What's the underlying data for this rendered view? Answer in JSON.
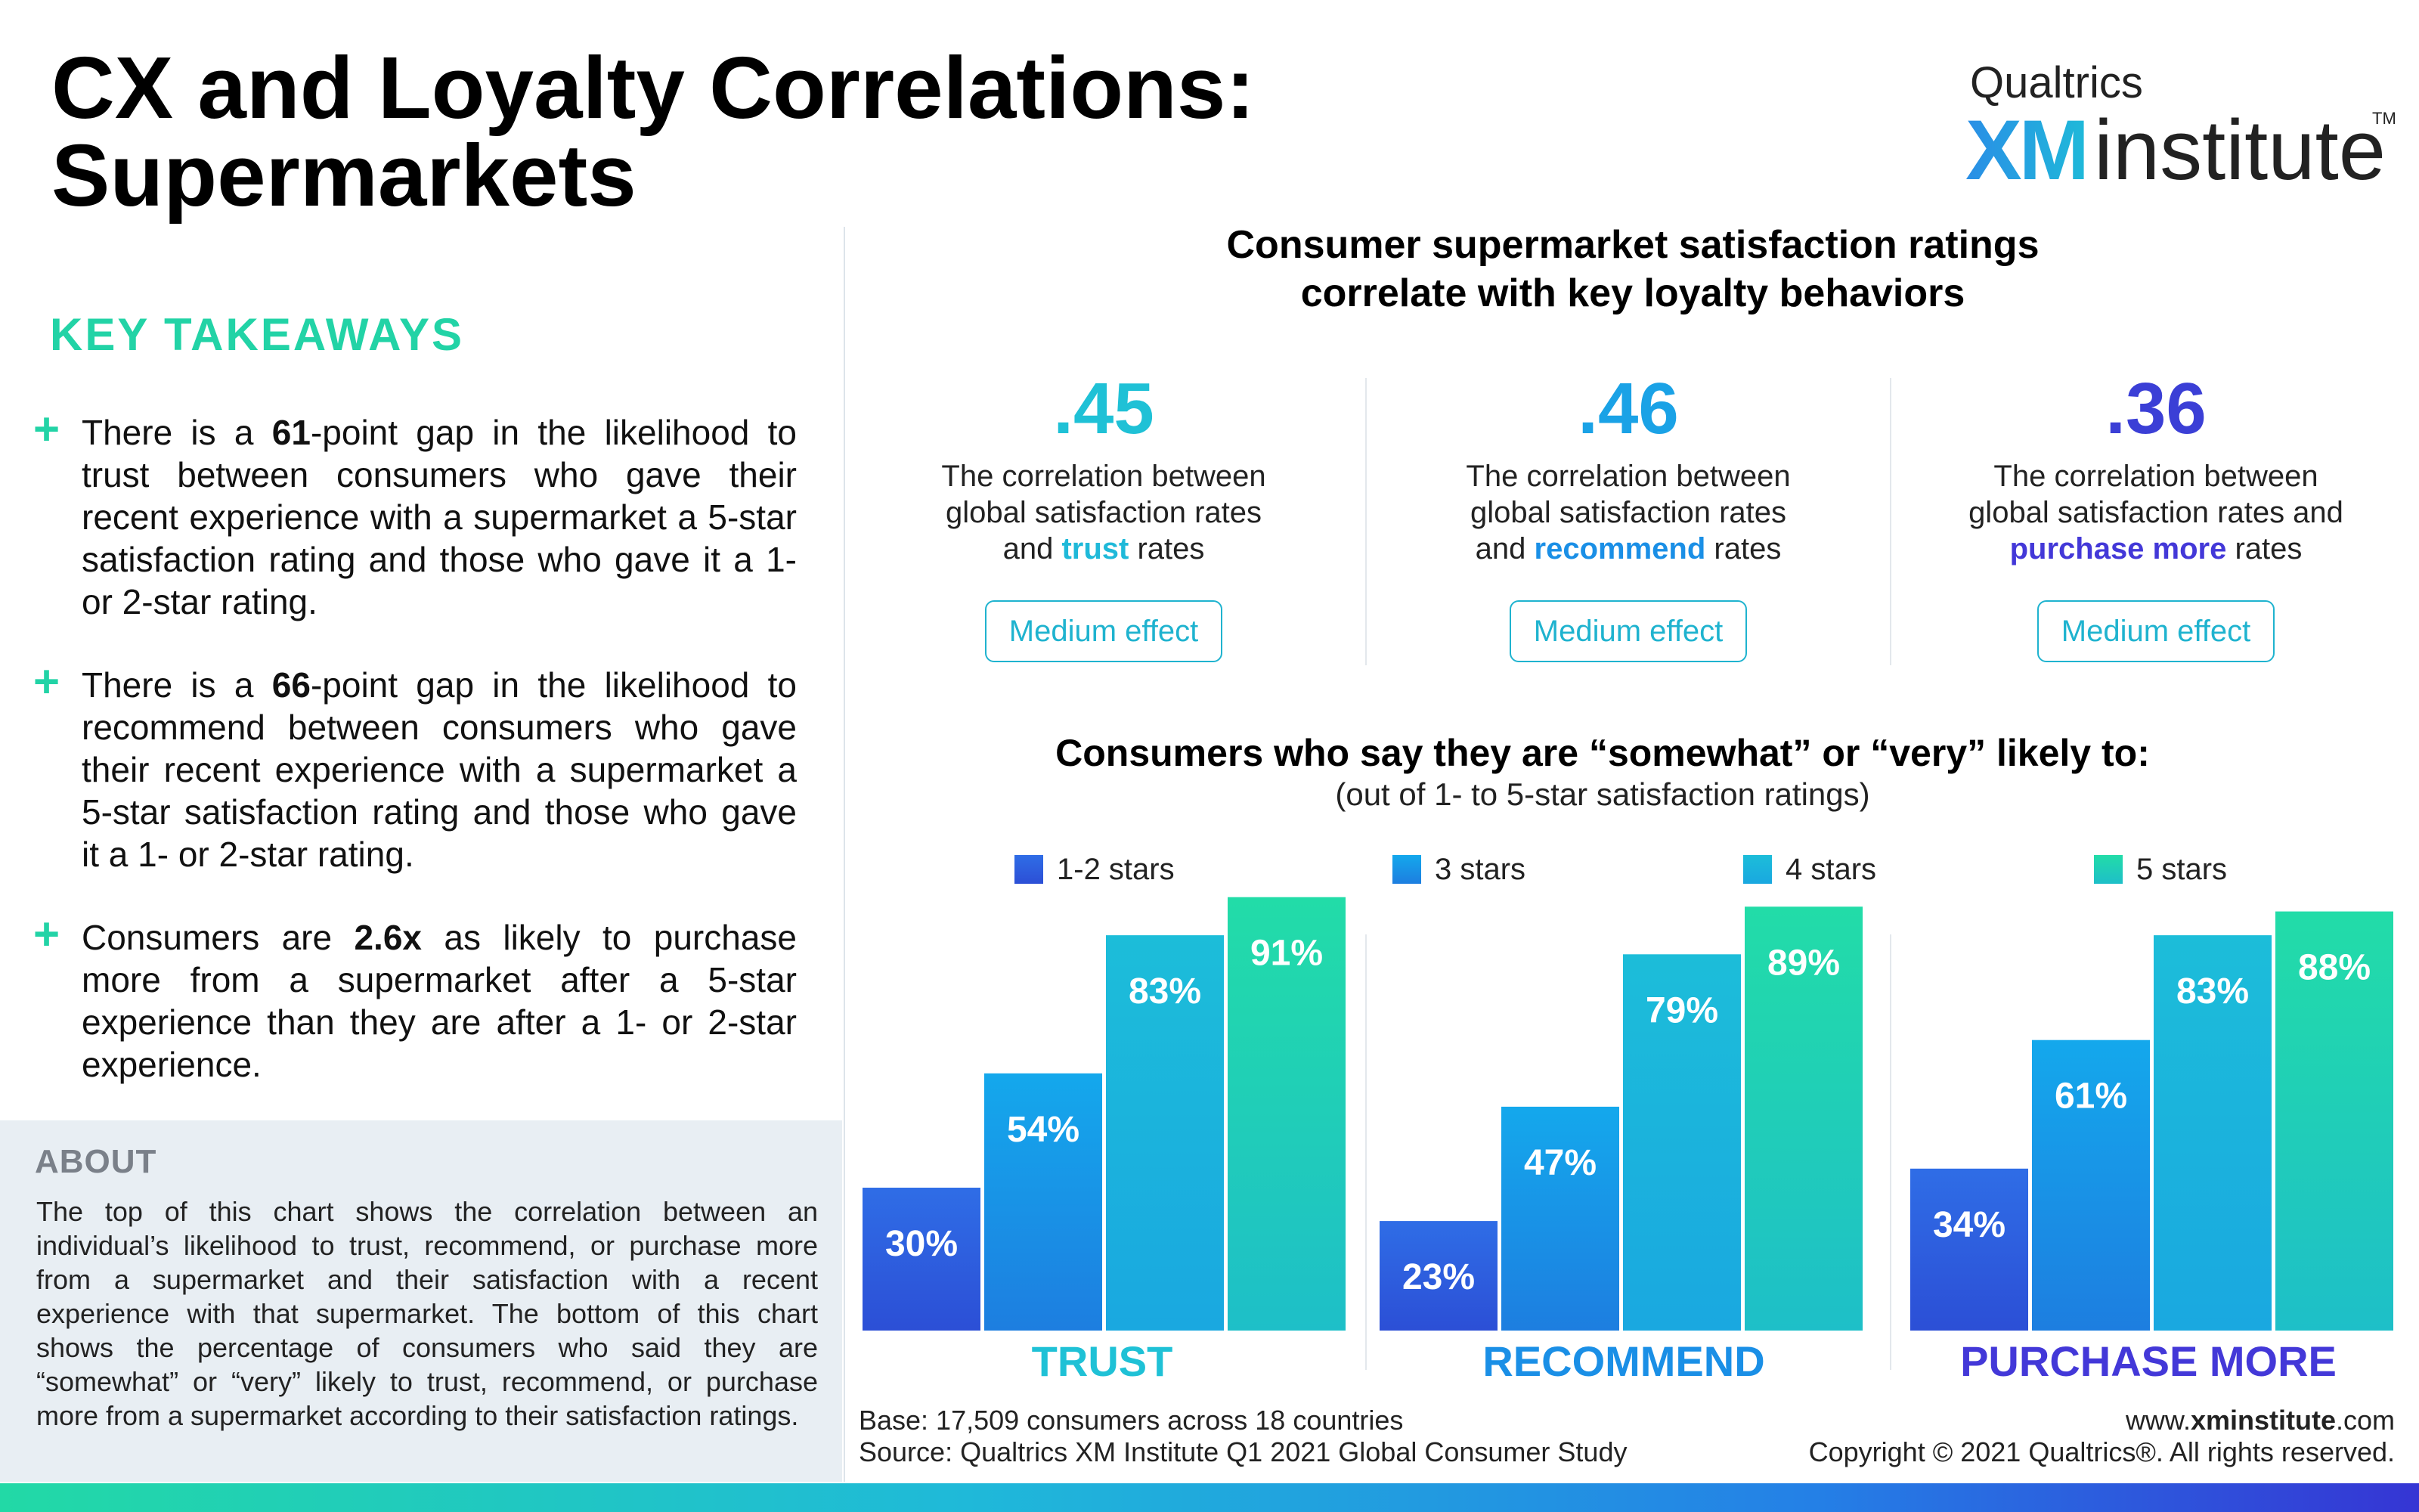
{
  "title": {
    "line1": "CX and Loyalty Correlations:",
    "line2": "Supermarkets"
  },
  "logo": {
    "qualtrics": "Qualtrics",
    "xm": "XM",
    "institute": "institute",
    "tm": "TM"
  },
  "key_takeaways": {
    "heading": "KEY TAKEAWAYS",
    "items": [
      {
        "pre": "There is a ",
        "bold": "61",
        "post": "-point gap in the likelihood to trust between consumers who gave their recent experience with a supermarket a 5-star satisfaction rating and those who gave it a 1- or 2-star rating."
      },
      {
        "pre": "There is a ",
        "bold": "66",
        "post": "-point gap in the likelihood to recommend between consumers who gave their recent experience with a supermarket a 5-star satisfaction rating and those who gave it a 1- or 2-star rating."
      },
      {
        "pre": "Consumers are ",
        "bold": "2.6x",
        "post": " as likely to purchase more from a supermarket after a 5-star experience than they are after a 1- or 2-star experience."
      }
    ]
  },
  "about": {
    "heading": "ABOUT",
    "body": "The top of this chart shows the correlation between an individual’s likelihood to trust, recommend, or purchase more from a supermarket and their satisfaction with a recent experience with that supermarket. The bottom of this chart shows the percentage of consumers who said they are “somewhat” or “very” likely to trust, recommend, or purchase more from a supermarket according to their satisfaction ratings."
  },
  "correlation_heading": {
    "line1": "Consumer supermarket satisfaction ratings",
    "line2": "correlate with key loyalty behaviors"
  },
  "correlations": [
    {
      "value": ".45",
      "color": "#1fc1d6",
      "line1": "The correlation between",
      "line2": "global satisfaction rates",
      "pre3": "and ",
      "keyword": "trust",
      "post3": " rates",
      "keyword_color": "#1fb9d9",
      "effect_word": "Medium",
      "effect_rest": " effect"
    },
    {
      "value": ".46",
      "color": "#1aa2e6",
      "line1": "The correlation between",
      "line2": "global satisfaction rates",
      "pre3": "and ",
      "keyword": "recommend",
      "post3": " rates",
      "keyword_color": "#1a8fe6",
      "effect_word": "Medium",
      "effect_rest": " effect"
    },
    {
      "value": ".36",
      "color": "#3b3fd6",
      "line1": "The correlation between",
      "line2": "global satisfaction rates and",
      "pre3": "",
      "keyword": "purchase more",
      "post3": " rates",
      "keyword_color": "#4338d8",
      "effect_word": "Medium",
      "effect_rest": " effect"
    }
  ],
  "bars_heading": "Consumers who say they are “somewhat” or “very” likely to:",
  "bars_note": "(out of 1- to 5-star satisfaction ratings)",
  "chart_data": {
    "type": "bar",
    "title": "Consumers who say they are “somewhat” or “very” likely to:",
    "subtitle": "(out of 1- to 5-star satisfaction ratings)",
    "categories": [
      "TRUST",
      "RECOMMEND",
      "PURCHASE MORE"
    ],
    "category_colors": [
      "#1fc1d6",
      "#1a8fe6",
      "#4338d8"
    ],
    "series": [
      {
        "name": "1-2 stars",
        "values": [
          30,
          23,
          34
        ],
        "color_top": "#2f6de6",
        "color_bottom": "#2c4fd6"
      },
      {
        "name": "3 stars",
        "values": [
          54,
          47,
          61
        ],
        "color_top": "#14a8ec",
        "color_bottom": "#1d7ee0"
      },
      {
        "name": "4 stars",
        "values": [
          83,
          79,
          83
        ],
        "color_top": "#1cbdd9",
        "color_bottom": "#1aa8e0"
      },
      {
        "name": "5 stars",
        "values": [
          91,
          89,
          88
        ],
        "color_top": "#22dca8",
        "color_bottom": "#1ebfc8"
      }
    ],
    "unit": "%",
    "ylim": [
      0,
      100
    ],
    "legend": "top",
    "grid": false
  },
  "footer": {
    "base": "Base: 17,509 consumers across 18 countries",
    "source": "Source: Qualtrics XM Institute Q1 2021 Global Consumer Study",
    "url_pre": "www.",
    "url_bold": "xminstitute",
    "url_post": ".com",
    "copyright": "Copyright © 2021 Qualtrics®. All rights reserved."
  }
}
